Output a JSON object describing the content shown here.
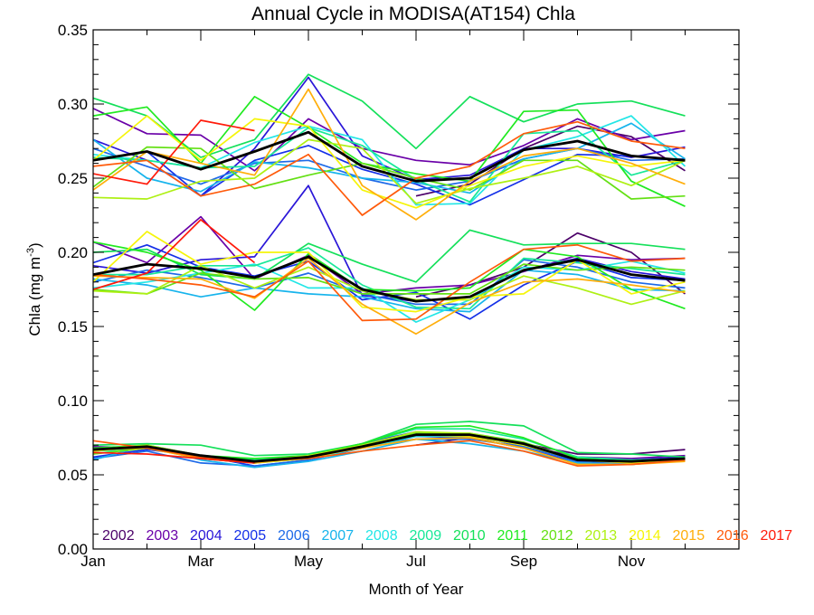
{
  "chart_data": {
    "type": "line",
    "title": "Annual Cycle in MODISA(AT154) Chla",
    "xlabel": "Month of Year",
    "ylabel_main": "Chla (mg m",
    "ylabel_sup": "-3",
    "ylabel_close": ")",
    "xlim": [
      1,
      13
    ],
    "ylim": [
      0,
      0.35
    ],
    "x_ticks": [
      {
        "value": 1,
        "label": "Jan"
      },
      {
        "value": 3,
        "label": "Mar"
      },
      {
        "value": 5,
        "label": "May"
      },
      {
        "value": 7,
        "label": "Jul"
      },
      {
        "value": 9,
        "label": "Sep"
      },
      {
        "value": 11,
        "label": "Nov"
      }
    ],
    "y_ticks": [
      {
        "value": 0.0,
        "label": "0.00"
      },
      {
        "value": 0.05,
        "label": "0.05"
      },
      {
        "value": 0.1,
        "label": "0.10"
      },
      {
        "value": 0.15,
        "label": "0.15"
      },
      {
        "value": 0.2,
        "label": "0.20"
      },
      {
        "value": 0.25,
        "label": "0.25"
      },
      {
        "value": 0.3,
        "label": "0.30"
      },
      {
        "value": 0.35,
        "label": "0.35"
      }
    ],
    "grid": false,
    "legend_position": "bottom",
    "x": [
      1,
      2,
      3,
      4,
      5,
      6,
      7,
      8,
      9,
      10,
      11,
      12
    ],
    "year_series": [
      {
        "year": "2002",
        "color": "#4b0068",
        "groups": [
          [
            null,
            null,
            null,
            null,
            null,
            null,
            0.238,
            0.246,
            0.27,
            0.285,
            0.278,
            0.255
          ],
          [
            null,
            null,
            null,
            null,
            null,
            null,
            0.17,
            0.178,
            0.19,
            0.213,
            0.2,
            0.172
          ],
          [
            null,
            null,
            null,
            null,
            null,
            null,
            0.07,
            0.075,
            0.071,
            0.064,
            0.064,
            0.067
          ]
        ]
      },
      {
        "year": "2003",
        "color": "#6a00a8",
        "groups": [
          [
            0.297,
            0.28,
            0.279,
            0.255,
            0.29,
            0.27,
            0.262,
            0.259,
            0.272,
            0.29,
            0.276,
            0.282
          ],
          [
            0.207,
            0.193,
            0.224,
            0.182,
            0.198,
            0.172,
            0.176,
            0.178,
            0.187,
            0.198,
            0.195,
            0.196
          ],
          [
            0.069,
            0.068,
            0.063,
            0.06,
            0.062,
            0.069,
            0.077,
            0.076,
            0.07,
            0.062,
            0.061,
            0.063
          ]
        ]
      },
      {
        "year": "2004",
        "color": "#2a16d8",
        "groups": [
          [
            0.276,
            0.262,
            0.238,
            0.27,
            0.318,
            0.265,
            0.249,
            0.252,
            0.27,
            0.27,
            0.264,
            0.271
          ],
          [
            0.191,
            0.186,
            0.195,
            0.197,
            0.245,
            0.171,
            0.167,
            0.17,
            0.188,
            0.196,
            0.187,
            0.182
          ],
          [
            0.066,
            0.069,
            0.061,
            0.058,
            0.062,
            0.071,
            0.079,
            0.077,
            0.069,
            0.061,
            0.06,
            0.062
          ]
        ]
      },
      {
        "year": "2005",
        "color": "#1530e8",
        "groups": [
          [
            0.262,
            0.268,
            0.238,
            0.262,
            0.272,
            0.256,
            0.246,
            0.232,
            0.249,
            0.266,
            0.265,
            0.262
          ],
          [
            0.193,
            0.205,
            0.19,
            0.184,
            0.194,
            0.168,
            0.173,
            0.155,
            0.178,
            0.194,
            0.183,
            0.181
          ],
          [
            0.062,
            0.067,
            0.063,
            0.056,
            0.06,
            0.068,
            0.076,
            0.075,
            0.068,
            0.058,
            0.057,
            0.06
          ]
        ]
      },
      {
        "year": "2006",
        "color": "#1e6ae8",
        "groups": [
          [
            0.27,
            0.258,
            0.246,
            0.26,
            0.262,
            0.25,
            0.242,
            0.248,
            0.263,
            0.27,
            0.262,
            0.263
          ],
          [
            0.18,
            0.188,
            0.183,
            0.176,
            0.186,
            0.172,
            0.165,
            0.165,
            0.195,
            0.19,
            0.18,
            0.176
          ],
          [
            0.061,
            0.066,
            0.058,
            0.056,
            0.06,
            0.07,
            0.074,
            0.074,
            0.069,
            0.059,
            0.058,
            0.061
          ]
        ]
      },
      {
        "year": "2007",
        "color": "#17b4ec",
        "groups": [
          [
            0.276,
            0.25,
            0.241,
            0.261,
            0.257,
            0.25,
            0.247,
            0.24,
            0.263,
            0.27,
            0.287,
            0.263
          ],
          [
            0.182,
            0.178,
            0.17,
            0.176,
            0.172,
            0.17,
            0.162,
            0.16,
            0.188,
            0.185,
            0.175,
            0.174
          ],
          [
            0.06,
            0.07,
            0.06,
            0.055,
            0.059,
            0.066,
            0.074,
            0.071,
            0.066,
            0.058,
            0.057,
            0.06
          ]
        ]
      },
      {
        "year": "2008",
        "color": "#22e6e6",
        "groups": [
          [
            0.266,
            0.262,
            0.257,
            0.274,
            0.285,
            0.276,
            0.232,
            0.233,
            0.269,
            0.278,
            0.292,
            0.258
          ],
          [
            0.176,
            0.18,
            0.186,
            0.192,
            0.176,
            0.176,
            0.153,
            0.168,
            0.19,
            0.188,
            0.194,
            0.186
          ],
          [
            0.064,
            0.069,
            0.062,
            0.058,
            0.061,
            0.068,
            0.076,
            0.076,
            0.07,
            0.06,
            0.059,
            0.06
          ]
        ]
      },
      {
        "year": "2009",
        "color": "#18e898",
        "groups": [
          [
            0.264,
            0.262,
            0.257,
            0.258,
            0.284,
            0.272,
            0.249,
            0.234,
            0.28,
            0.282,
            0.252,
            0.262
          ],
          [
            0.185,
            0.185,
            0.191,
            0.191,
            0.203,
            0.178,
            0.163,
            0.162,
            0.196,
            0.193,
            0.189,
            0.185
          ],
          [
            0.066,
            0.068,
            0.063,
            0.06,
            0.063,
            0.071,
            0.081,
            0.081,
            0.074,
            0.062,
            0.06,
            0.061
          ]
        ]
      },
      {
        "year": "2010",
        "color": "#14e05a",
        "groups": [
          [
            0.304,
            0.292,
            0.264,
            0.276,
            0.32,
            0.302,
            0.27,
            0.305,
            0.288,
            0.3,
            0.302,
            0.292
          ],
          [
            0.2,
            0.202,
            0.185,
            0.182,
            0.206,
            0.192,
            0.18,
            0.215,
            0.205,
            0.206,
            0.206,
            0.202
          ],
          [
            0.07,
            0.071,
            0.07,
            0.063,
            0.064,
            0.071,
            0.084,
            0.086,
            0.083,
            0.065,
            0.064,
            0.062
          ]
        ]
      },
      {
        "year": "2011",
        "color": "#20ea20",
        "groups": [
          [
            0.292,
            0.298,
            0.26,
            0.305,
            0.284,
            0.26,
            0.253,
            0.248,
            0.295,
            0.296,
            0.248,
            0.231
          ],
          [
            0.207,
            0.2,
            0.188,
            0.161,
            0.199,
            0.175,
            0.174,
            0.176,
            0.202,
            0.197,
            0.175,
            0.162
          ],
          [
            0.068,
            0.07,
            0.063,
            0.061,
            0.063,
            0.071,
            0.082,
            0.083,
            0.075,
            0.061,
            0.059,
            0.061
          ]
        ]
      },
      {
        "year": "2012",
        "color": "#64e014",
        "groups": [
          [
            0.244,
            0.271,
            0.27,
            0.243,
            0.252,
            0.26,
            0.25,
            0.242,
            0.262,
            0.262,
            0.236,
            0.238
          ],
          [
            0.175,
            0.172,
            0.186,
            0.182,
            0.183,
            0.172,
            0.172,
            0.172,
            0.192,
            0.188,
            0.19,
            0.188
          ],
          [
            0.064,
            0.068,
            0.061,
            0.058,
            0.062,
            0.069,
            0.078,
            0.078,
            0.072,
            0.06,
            0.059,
            0.061
          ]
        ]
      },
      {
        "year": "2013",
        "color": "#aef014",
        "groups": [
          [
            0.237,
            0.236,
            0.248,
            0.25,
            0.276,
            0.27,
            0.233,
            0.243,
            0.25,
            0.258,
            0.245,
            0.262
          ],
          [
            0.174,
            0.172,
            0.191,
            0.176,
            0.19,
            0.174,
            0.168,
            0.168,
            0.184,
            0.176,
            0.165,
            0.174
          ],
          [
            0.067,
            0.07,
            0.063,
            0.059,
            0.063,
            0.07,
            0.079,
            0.078,
            0.071,
            0.06,
            0.059,
            0.06
          ]
        ]
      },
      {
        "year": "2014",
        "color": "#f5f50a",
        "groups": [
          [
            0.262,
            0.292,
            0.262,
            0.29,
            0.285,
            0.242,
            0.23,
            0.245,
            0.258,
            0.265,
            0.258,
            0.262
          ],
          [
            0.18,
            0.214,
            0.192,
            0.2,
            0.2,
            0.163,
            0.16,
            0.17,
            0.172,
            0.195,
            0.172,
            0.18
          ],
          [
            0.066,
            0.069,
            0.062,
            0.058,
            0.061,
            0.069,
            0.077,
            0.076,
            0.07,
            0.06,
            0.058,
            0.059
          ]
        ]
      },
      {
        "year": "2015",
        "color": "#ffae0a",
        "groups": [
          [
            0.242,
            0.268,
            0.26,
            0.252,
            0.31,
            0.245,
            0.222,
            0.248,
            0.265,
            0.27,
            0.26,
            0.246
          ],
          [
            0.184,
            0.183,
            0.182,
            0.169,
            0.196,
            0.165,
            0.145,
            0.166,
            0.18,
            0.182,
            0.178,
            0.173
          ],
          [
            0.067,
            0.068,
            0.061,
            0.058,
            0.062,
            0.068,
            0.074,
            0.075,
            0.068,
            0.057,
            0.057,
            0.059
          ]
        ]
      },
      {
        "year": "2016",
        "color": "#ff5a0a",
        "groups": [
          [
            0.258,
            0.262,
            0.238,
            0.246,
            0.266,
            0.225,
            0.25,
            0.258,
            0.28,
            0.288,
            0.275,
            0.27
          ],
          [
            0.185,
            0.182,
            0.178,
            0.17,
            0.194,
            0.154,
            0.155,
            0.18,
            0.202,
            0.205,
            0.194,
            0.196
          ],
          [
            0.073,
            0.068,
            0.062,
            0.059,
            0.061,
            0.066,
            0.07,
            0.073,
            0.066,
            0.056,
            0.057,
            0.06
          ]
        ]
      },
      {
        "year": "2017",
        "color": "#ff1a0a",
        "groups": [
          [
            0.253,
            0.246,
            0.289,
            0.282,
            null,
            null,
            null,
            null,
            null,
            null,
            null,
            null
          ],
          [
            0.175,
            0.186,
            0.222,
            0.193,
            null,
            null,
            null,
            null,
            null,
            null,
            null,
            null
          ],
          [
            0.065,
            0.064,
            0.061,
            0.058,
            null,
            null,
            null,
            null,
            null,
            null,
            null,
            null
          ]
        ]
      }
    ],
    "mean_series": {
      "color": "#000000",
      "groups": [
        [
          0.262,
          0.268,
          0.256,
          0.268,
          0.281,
          0.258,
          0.248,
          0.25,
          0.269,
          0.275,
          0.265,
          0.262
        ],
        [
          0.185,
          0.192,
          0.189,
          0.183,
          0.197,
          0.175,
          0.167,
          0.17,
          0.188,
          0.195,
          0.185,
          0.181
        ],
        [
          0.067,
          0.069,
          0.063,
          0.059,
          0.062,
          0.069,
          0.077,
          0.077,
          0.071,
          0.06,
          0.059,
          0.061
        ]
      ]
    }
  }
}
